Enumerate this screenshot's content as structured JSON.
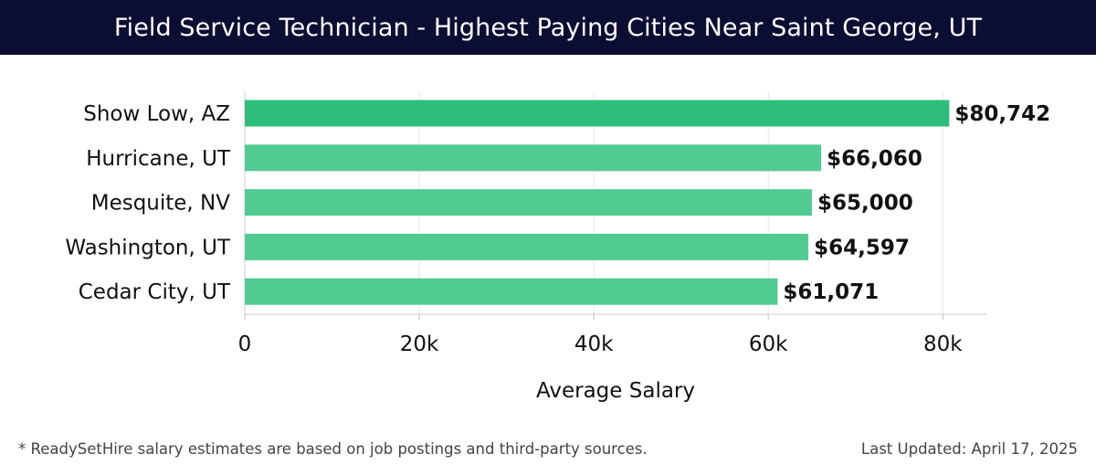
{
  "header": {
    "title": "Field Service Technician - Highest Paying Cities Near Saint George, UT"
  },
  "footer": {
    "note": "* ReadySetHire salary estimates are based on job postings and third-party sources.",
    "updated": "Last Updated: April 17, 2025"
  },
  "colors": {
    "header_bg": "#0b0d33",
    "bar_top": "#2dbf79",
    "bar": "#52cb91"
  },
  "chart_data": {
    "type": "bar",
    "orientation": "horizontal",
    "categories": [
      "Show Low, AZ",
      "Hurricane, UT",
      "Mesquite, NV",
      "Washington, UT",
      "Cedar City, UT"
    ],
    "values": [
      80742,
      66060,
      65000,
      64597,
      61071
    ],
    "value_labels": [
      "$80,742",
      "$66,060",
      "$65,000",
      "$64,597",
      "$61,071"
    ],
    "xlabel": "Average Salary",
    "xlim": [
      0,
      85000
    ],
    "xticks": [
      0,
      20000,
      40000,
      60000,
      80000
    ],
    "xtick_labels": [
      "0",
      "20k",
      "40k",
      "60k",
      "80k"
    ],
    "grid": "vertical"
  }
}
